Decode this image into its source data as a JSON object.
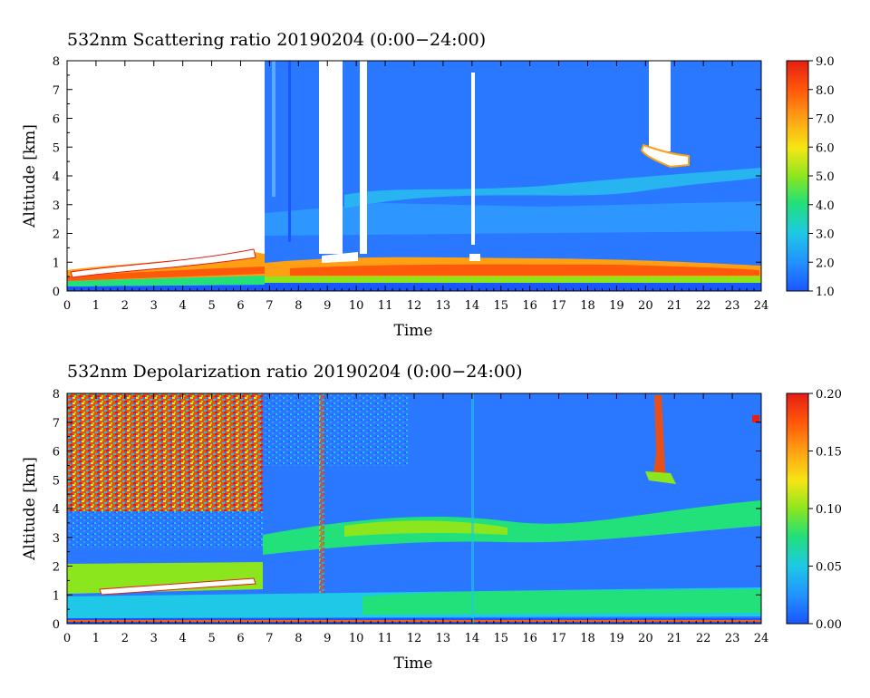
{
  "chart_data": [
    {
      "type": "heatmap",
      "title": "532nm Scattering ratio   20190204 (0:00−24:00)",
      "xlabel": "Time",
      "ylabel": "Altitude [km]",
      "xlim": [
        0,
        24
      ],
      "ylim": [
        0,
        8
      ],
      "x_ticks": [
        "0",
        "1",
        "2",
        "3",
        "4",
        "5",
        "6",
        "7",
        "8",
        "9",
        "10",
        "11",
        "12",
        "13",
        "14",
        "15",
        "16",
        "17",
        "18",
        "19",
        "20",
        "21",
        "22",
        "23",
        "24"
      ],
      "y_ticks": [
        "0",
        "1",
        "2",
        "3",
        "4",
        "5",
        "6",
        "7",
        "8"
      ],
      "colorbar": {
        "min": 1.0,
        "max": 9.0,
        "ticks": [
          "1.0",
          "2.0",
          "3.0",
          "4.0",
          "5.0",
          "6.0",
          "7.0",
          "8.0",
          "9.0"
        ],
        "colors": [
          "#1a55ff",
          "#2290ff",
          "#1ec8e6",
          "#22e07a",
          "#8ce61e",
          "#f5e614",
          "#ffa014",
          "#ff5a0a",
          "#e61e14"
        ]
      },
      "features": {
        "cloud_base_km_low_overcast": 0.9,
        "aerosol_layer_km": [
          0.4,
          1.2
        ],
        "elevated_layer_km": [
          3.0,
          3.6
        ],
        "upper_cloud_times": [
          20.2,
          21.6
        ],
        "upper_cloud_km": [
          4.5,
          5.2
        ]
      }
    },
    {
      "type": "heatmap",
      "title": "532nm Depolarization ratio   20190204 (0:00−24:00)",
      "xlabel": "Time",
      "ylabel": "Altitude [km]",
      "xlim": [
        0,
        24
      ],
      "ylim": [
        0,
        8
      ],
      "x_ticks": [
        "0",
        "1",
        "2",
        "3",
        "4",
        "5",
        "6",
        "7",
        "8",
        "9",
        "10",
        "11",
        "12",
        "13",
        "14",
        "15",
        "16",
        "17",
        "18",
        "19",
        "20",
        "21",
        "22",
        "23",
        "24"
      ],
      "y_ticks": [
        "0",
        "1",
        "2",
        "3",
        "4",
        "5",
        "6",
        "7",
        "8"
      ],
      "colorbar": {
        "min": 0.0,
        "max": 0.2,
        "ticks": [
          "0.00",
          "0.05",
          "0.10",
          "0.15",
          "0.20"
        ],
        "colors": [
          "#1a55ff",
          "#2290ff",
          "#1ec8e6",
          "#22e07a",
          "#8ce61e",
          "#f5e614",
          "#ffa014",
          "#ff5a0a",
          "#e61e14"
        ]
      },
      "features": {
        "dust_layer_km": [
          3.0,
          4.0
        ],
        "low_green_layer_km": [
          1.2,
          2.0
        ],
        "noisy_region_times": [
          0,
          6.8
        ]
      }
    }
  ]
}
